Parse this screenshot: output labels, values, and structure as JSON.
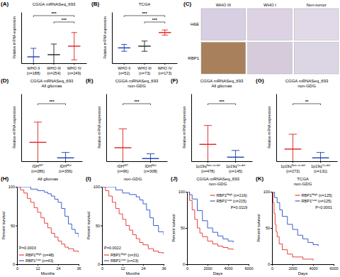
{
  "chart_data": [
    {
      "type": "dot",
      "label": "(A)",
      "title": [
        "CGGA mRNASeq_693"
      ],
      "categories": [
        "WHO II",
        "WHO III",
        "WHO IV"
      ],
      "n_labels": [
        "(n=188)",
        "(n=254)",
        "(n=249)"
      ],
      "values": [
        15,
        20,
        40
      ],
      "error": [
        20,
        25,
        32
      ],
      "colors": [
        "#1c3fb8",
        "#222222",
        "#e02020"
      ],
      "ylabel": "Relative mRNA expression",
      "ylim": [
        0,
        120
      ],
      "tick_labels": false,
      "annotations": [
        {
          "from": 1,
          "to": 2,
          "text": "***"
        },
        {
          "from": 0,
          "to": 2,
          "text": "***"
        }
      ]
    },
    {
      "type": "dot",
      "label": "(B)",
      "title": [
        "TCGA"
      ],
      "categories": [
        "WHO II",
        "WHO III",
        "WHO IV"
      ],
      "n_labels": [
        "(n=52)",
        "(n=73)",
        "(n=173)"
      ],
      "values": [
        9,
        10,
        18
      ],
      "error": [
        2,
        3,
        1.5
      ],
      "colors": [
        "#1c3fb8",
        "#222222",
        "#e02020"
      ],
      "ylabel": "Relative mRNA expression",
      "ylim": [
        0,
        30
      ],
      "tick_labels": false,
      "annotations": [
        {
          "from": 1,
          "to": 2,
          "text": "***"
        },
        {
          "from": 0,
          "to": 2,
          "text": "***"
        }
      ]
    },
    {
      "type": "image_grid",
      "label": "(C)",
      "columns": [
        "WHO III",
        "WHO I",
        "Non-tumor"
      ],
      "rows": [
        "H&E",
        "RBP1"
      ]
    },
    {
      "type": "dot",
      "label": "(D)",
      "title": [
        "CGGA mRNASeq_693",
        "All gliomas"
      ],
      "categories": [
        "IDH",
        "IDH"
      ],
      "superscripts": [
        "WT",
        "Mut"
      ],
      "n_labels": [
        "(n=286)",
        "(n=356)"
      ],
      "values": [
        28,
        5
      ],
      "error": [
        30,
        8
      ],
      "colors": [
        "#e02020",
        "#1c3fb8"
      ],
      "ylabel": "Relative mRNA expression",
      "ylim": [
        0,
        100
      ],
      "tick_labels": false,
      "annotations": [
        {
          "from": 0,
          "to": 1,
          "text": "***"
        }
      ]
    },
    {
      "type": "dot",
      "label": "(E)",
      "title": [
        "CGGA mRNASeq_693",
        "non-GDG"
      ],
      "categories": [
        "IDH",
        "IDH"
      ],
      "superscripts": [
        "WT",
        "Mut"
      ],
      "n_labels": [
        "(n=96)",
        "(n=308)"
      ],
      "values": [
        20,
        4
      ],
      "error": [
        28,
        7
      ],
      "colors": [
        "#e02020",
        "#1c3fb8"
      ],
      "ylabel": "Relative mRNA expression",
      "ylim": [
        0,
        100
      ],
      "tick_labels": false,
      "annotations": [
        {
          "from": 0,
          "to": 1,
          "text": "***"
        }
      ]
    },
    {
      "type": "dot",
      "label": "(F)",
      "title": [
        "CGGA mRNASeq_693",
        "All gliomas"
      ],
      "categories": [
        "1p19q",
        "1p19q"
      ],
      "superscripts": [
        "Non co-del",
        "Co-del"
      ],
      "n_labels": [
        "(n=478)",
        "(n=145)"
      ],
      "values": [
        25,
        6
      ],
      "error": [
        28,
        10
      ],
      "colors": [
        "#e02020",
        "#1c3fb8"
      ],
      "ylabel": "Relative mRNA expression",
      "ylim": [
        0,
        100
      ],
      "tick_labels": false,
      "annotations": [
        {
          "from": 0,
          "to": 1,
          "text": "***"
        }
      ]
    },
    {
      "type": "dot",
      "label": "(G)",
      "title": [
        "CGGA mRNASeq_693",
        "non-GDG"
      ],
      "categories": [
        "1p19q",
        "1p19q"
      ],
      "superscripts": [
        "Non co-del",
        "Co-del"
      ],
      "n_labels": [
        "(n=273)",
        "(n=131)"
      ],
      "values": [
        18,
        5
      ],
      "error": [
        22,
        8
      ],
      "colors": [
        "#e02020",
        "#1c3fb8"
      ],
      "ylabel": "Relative mRNA expression",
      "ylim": [
        0,
        100
      ],
      "tick_labels": false,
      "annotations": [
        {
          "from": 0,
          "to": 1,
          "text": "**"
        }
      ]
    },
    {
      "type": "survival",
      "label": "(H)",
      "title": [
        "All gliomas"
      ],
      "xlabel": "Months",
      "ylabel": "Percent survival",
      "xlim": [
        0,
        36
      ],
      "xticks": [
        0,
        12,
        24,
        36
      ],
      "ylim": [
        0,
        100
      ],
      "yticks": [
        0,
        50,
        100
      ],
      "p_value": "P=0.0003",
      "legend": "bottom left",
      "series": [
        {
          "name": "RBP1",
          "superscript": "High",
          "n": "(n=48)",
          "color": "#e8433a",
          "x": [
            0,
            2,
            4,
            6,
            8,
            10,
            12,
            14,
            16,
            18,
            20,
            22,
            24,
            26,
            28,
            30,
            33,
            36
          ],
          "values": [
            100,
            96,
            92,
            85,
            80,
            73,
            67,
            60,
            53,
            47,
            40,
            35,
            30,
            26,
            22,
            20,
            17,
            15
          ]
        },
        {
          "name": "RBP1",
          "superscript": "Low",
          "n": "(n=43)",
          "color": "#3a5fcd",
          "x": [
            0,
            4,
            8,
            12,
            16,
            18,
            20,
            22,
            24,
            26,
            28,
            30,
            32,
            34,
            36
          ],
          "values": [
            100,
            100,
            97,
            95,
            93,
            91,
            88,
            84,
            80,
            72,
            62,
            52,
            45,
            40,
            35
          ]
        }
      ]
    },
    {
      "type": "survival",
      "label": "(I)",
      "title": [
        "non-GDG"
      ],
      "xlabel": "Months",
      "ylabel": "Percent survival",
      "xlim": [
        0,
        36
      ],
      "xticks": [
        0,
        12,
        24,
        36
      ],
      "ylim": [
        0,
        100
      ],
      "yticks": [
        0,
        50,
        100
      ],
      "p_value": "P=0.0022",
      "legend": "bottom left",
      "series": [
        {
          "name": "RBP1",
          "superscript": "High",
          "n": "(n=31)",
          "color": "#e8433a",
          "x": [
            0,
            2,
            4,
            6,
            8,
            10,
            12,
            14,
            16,
            18,
            20,
            22,
            24,
            27,
            30,
            33,
            36
          ],
          "values": [
            100,
            95,
            88,
            80,
            72,
            65,
            58,
            50,
            44,
            38,
            33,
            28,
            25,
            20,
            17,
            15,
            13
          ]
        },
        {
          "name": "RBP1",
          "superscript": "Low",
          "n": "(n=23)",
          "color": "#3a5fcd",
          "x": [
            0,
            4,
            8,
            12,
            16,
            20,
            22,
            24,
            26,
            28,
            30,
            33,
            36
          ],
          "values": [
            100,
            100,
            96,
            92,
            90,
            87,
            83,
            78,
            70,
            60,
            50,
            42,
            38
          ]
        }
      ]
    },
    {
      "type": "survival",
      "label": "(J)",
      "title": [
        "CGGA mRNASeq_693",
        "non-GDG"
      ],
      "xlabel": "Days",
      "ylabel": "Percent survival",
      "xlim": [
        0,
        6000
      ],
      "xticks": [
        0,
        2000,
        4000,
        6000
      ],
      "ylim": [
        0,
        100
      ],
      "yticks": [
        0,
        50,
        100
      ],
      "p_value": "P=0.0119",
      "legend": "top right",
      "series": [
        {
          "name": "RBP1",
          "superscript": "High",
          "n": "(n=216)",
          "color": "#e8433a",
          "x": [
            0,
            250,
            500,
            750,
            1000,
            1250,
            1500,
            2000,
            2500,
            3000,
            3500,
            4000,
            4500
          ],
          "values": [
            100,
            88,
            75,
            62,
            50,
            43,
            38,
            32,
            28,
            25,
            23,
            21,
            20
          ]
        },
        {
          "name": "RBP1",
          "superscript": "Low",
          "n": "(n=215)",
          "color": "#3a5fcd",
          "x": [
            0,
            250,
            500,
            1000,
            1500,
            2000,
            2500,
            3000,
            3500,
            4000,
            4500
          ],
          "values": [
            100,
            96,
            90,
            74,
            60,
            50,
            44,
            39,
            35,
            32,
            30
          ]
        }
      ]
    },
    {
      "type": "survival",
      "label": "(K)",
      "title": [
        "TCGA",
        "non-GDG"
      ],
      "xlabel": "Days",
      "ylabel": "Percent survival",
      "xlim": [
        0,
        6000
      ],
      "xticks": [
        0,
        2000,
        4000,
        6000
      ],
      "ylim": [
        0,
        100
      ],
      "yticks": [
        0,
        50,
        100
      ],
      "p_value": "P<0.0001",
      "legend": "top right",
      "series": [
        {
          "name": "RBP1",
          "superscript": "High",
          "n": "(n=125)",
          "color": "#e8433a",
          "x": [
            0,
            100,
            200,
            300,
            400,
            500,
            700,
            1000,
            1500,
            2000,
            3000,
            4000
          ],
          "values": [
            100,
            85,
            70,
            55,
            45,
            38,
            28,
            20,
            14,
            10,
            7,
            5
          ]
        },
        {
          "name": "RBP1",
          "superscript": "Low",
          "n": "(n=125)",
          "color": "#3a5fcd",
          "x": [
            0,
            250,
            500,
            750,
            1000,
            1500,
            2000,
            2500,
            3000,
            3500,
            4000,
            4500
          ],
          "values": [
            100,
            92,
            85,
            75,
            66,
            55,
            48,
            40,
            35,
            30,
            27,
            25
          ]
        }
      ]
    }
  ]
}
